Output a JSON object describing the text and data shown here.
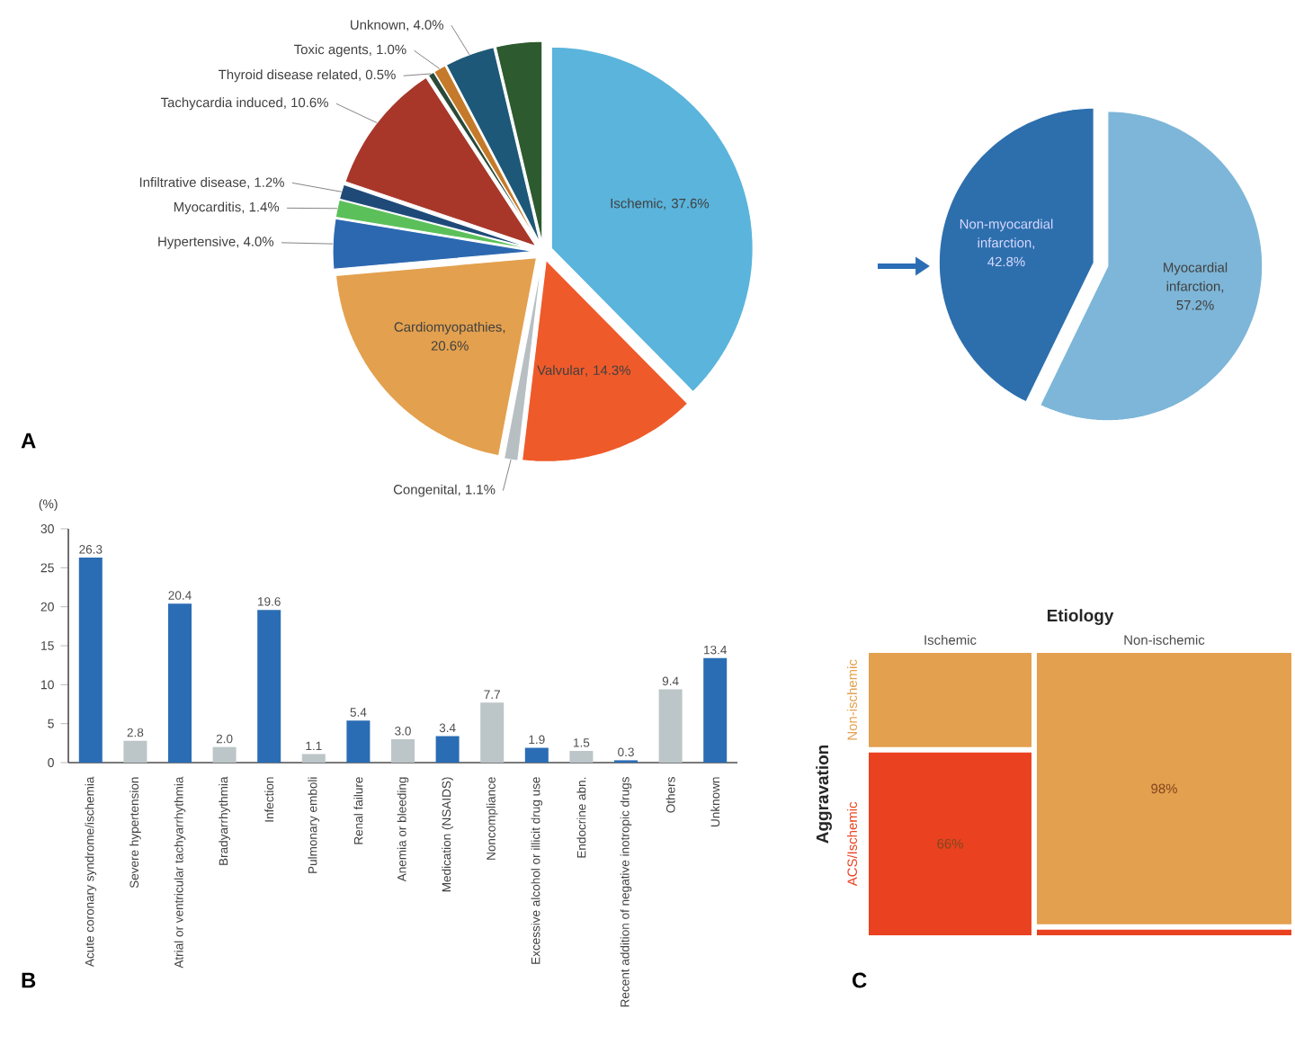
{
  "chart_data": [
    {
      "type": "pie",
      "categories": [
        "Ischemic",
        "Valvular",
        "Congenital",
        "Cardiomyopathies",
        "Hypertensive",
        "Myocarditis",
        "Infiltrative disease",
        "Tachycardia induced",
        "Thyroid disease related",
        "Toxic agents",
        "Unknown",
        null
      ],
      "values": [
        37.6,
        14.3,
        1.1,
        20.6,
        4.0,
        1.4,
        1.2,
        10.6,
        0.5,
        1.0,
        4.0,
        3.7
      ],
      "value_labels": [
        ", 37.6%",
        ", 14.3%",
        ", 1.1%",
        ", 20.6%",
        ", 4.0%",
        ", 1.4%",
        ", 1.2%",
        ", 10.6%",
        ", 0.5%",
        ", 1.0%",
        ", 4.0%",
        null
      ],
      "colors": [
        "#5ab4dc",
        "#ef5a2a",
        "#b7bfc2",
        "#e3a04e",
        "#2c68b0",
        "#5cc05a",
        "#1f4a78",
        "#a8372a",
        "#2b4a3a",
        "#c47a2a",
        "#1e5878",
        "#2d5a2e"
      ],
      "annotations": [
        "A"
      ]
    },
    {
      "type": "pie",
      "categories": [
        "Myocardial infarction",
        "Non-myocardial infarction"
      ],
      "values": [
        57.2,
        42.8
      ],
      "value_labels": [
        ", 57.2%",
        ", 42.8%"
      ],
      "colors": [
        "#7db6d8",
        "#2d6fad"
      ]
    },
    {
      "type": "bar",
      "categories": [
        "Acute coronary syndrome/ischemia",
        "Severe hypertension",
        "Atrial or ventricular tachyarrhythmia",
        "Bradyarrhythmia",
        "Infection",
        "Pulmonary emboli",
        "Renal failure",
        "Anemia or bleeding",
        "Medication (NSAIDS)",
        "Noncompliance",
        "Excessive alcohol or illicit drug use",
        "Endocrine abn.",
        "Recent addition of negative inotropic drugs",
        "Others",
        "Unknown"
      ],
      "values": [
        26.3,
        2.8,
        20.4,
        2.0,
        19.6,
        1.1,
        5.4,
        3.0,
        3.4,
        7.7,
        1.9,
        1.5,
        0.3,
        9.4,
        13.4
      ],
      "value_labels": [
        "26.3",
        "2.8",
        "20.4",
        "2.0",
        "19.6",
        "1.1",
        "5.4",
        "3.0",
        "3.4",
        "7.7",
        "1.9",
        "1.5",
        "0.3",
        "9.4",
        "13.4"
      ],
      "colors": [
        "#2a6db5",
        "#bcc5c7",
        "#2a6db5",
        "#bcc5c7",
        "#2a6db5",
        "#bcc5c7",
        "#2a6db5",
        "#bcc5c7",
        "#2a6db5",
        "#bcc5c7",
        "#2a6db5",
        "#bcc5c7",
        "#2a6db5",
        "#bcc5c7",
        "#2a6db5"
      ],
      "ylim": [
        0,
        30
      ],
      "yticks": [
        0,
        5,
        10,
        15,
        20,
        25,
        30
      ],
      "ylabel": "(%)",
      "annotations": [
        "B"
      ]
    },
    {
      "type": "other",
      "title": "Etiology",
      "ylabel": "Aggravation",
      "categories": [
        "Ischemic",
        "Non-ischemic"
      ],
      "series": [
        {
          "name": "Non-ischemic",
          "color": "#e3a04e",
          "values": [
            null,
            98
          ],
          "value_labels": [
            null,
            "98%"
          ]
        },
        {
          "name": "ACS/Ischemic",
          "color": "#ea4220",
          "values": [
            66,
            null
          ],
          "value_labels": [
            "66%",
            null
          ]
        }
      ],
      "annotations": [
        "C"
      ]
    }
  ]
}
